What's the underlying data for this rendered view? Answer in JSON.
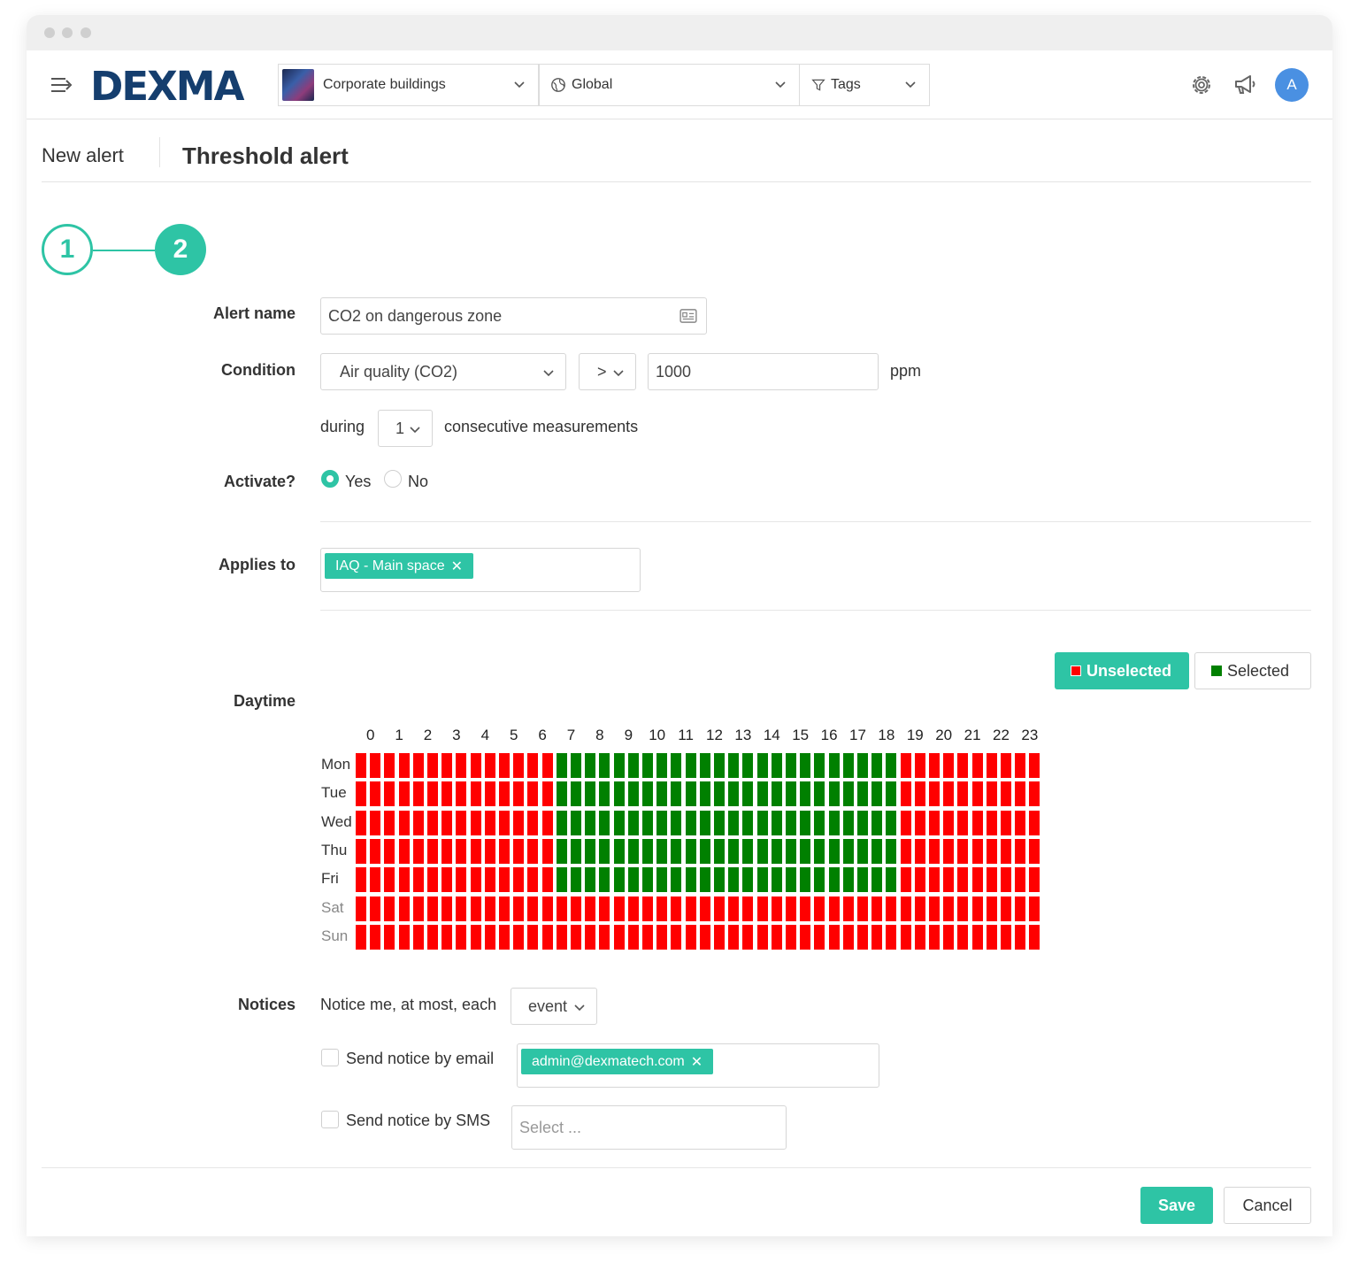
{
  "brand": {
    "logo": "DEXMA",
    "accent": "#2ec4a5",
    "navy": "#153e6e"
  },
  "topbar": {
    "building_selector": "Corporate buildings",
    "scope_selector": "Global",
    "tags_selector": "Tags",
    "avatar_initial": "A",
    "icons": [
      "menu-icon",
      "chevron-down-icon",
      "globe-icon",
      "filter-icon",
      "gear-icon",
      "megaphone-icon"
    ]
  },
  "header": {
    "breadcrumb": "New alert",
    "title": "Threshold alert"
  },
  "steps": [
    {
      "label": "1",
      "state": "done"
    },
    {
      "label": "2",
      "state": "current"
    }
  ],
  "form": {
    "alert_name": {
      "label": "Alert name",
      "value": "CO2 on dangerous zone"
    },
    "condition": {
      "label": "Condition",
      "parameter": "Air quality (CO2)",
      "operator": ">",
      "value": "1000",
      "unit": "ppm",
      "during_label": "during",
      "count": "1",
      "count_suffix": "consecutive measurements"
    },
    "activate": {
      "label": "Activate?",
      "yes": "Yes",
      "no": "No",
      "selected": "Yes"
    },
    "applies_to": {
      "label": "Applies to",
      "tag": "IAQ - Main space",
      "remove": "✕"
    },
    "daytime": {
      "label": "Daytime",
      "unselected_label": "Unselected",
      "selected_label": "Selected",
      "unselected_color": "#ff0000",
      "selected_color": "#008000",
      "days": [
        "Mon",
        "Tue",
        "Wed",
        "Thu",
        "Fri",
        "Sat",
        "Sun"
      ],
      "hours": [
        "0",
        "1",
        "2",
        "3",
        "4",
        "5",
        "6",
        "7",
        "8",
        "9",
        "10",
        "11",
        "12",
        "13",
        "14",
        "15",
        "16",
        "17",
        "18",
        "19",
        "20",
        "21",
        "22",
        "23"
      ],
      "selected_days": [
        "Mon",
        "Tue",
        "Wed",
        "Thu",
        "Fri"
      ],
      "selected_from_hour": 7,
      "selected_to_hour": 18
    },
    "notices": {
      "label": "Notices",
      "frequency_label": "Notice me, at most, each",
      "frequency": "event",
      "email_label": "Send notice by email",
      "email_value": "admin@dexmatech.com",
      "email_remove": "✕",
      "sms_label": "Send notice by SMS",
      "sms_placeholder": "Select ..."
    }
  },
  "actions": {
    "save": "Save",
    "cancel": "Cancel"
  }
}
